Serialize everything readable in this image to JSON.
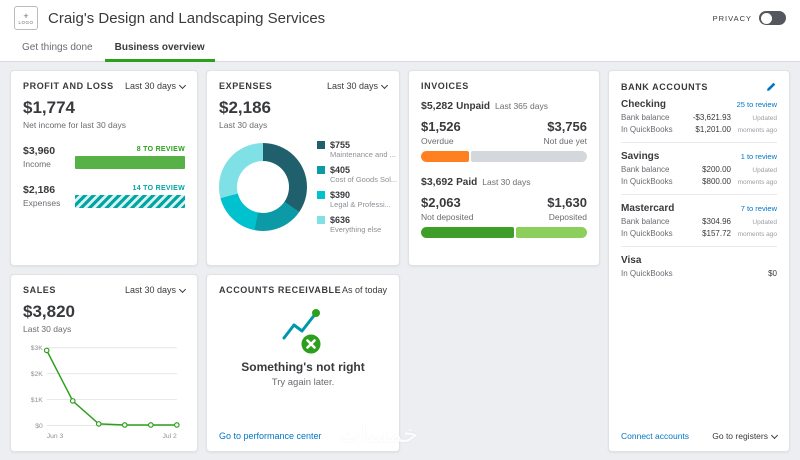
{
  "header": {
    "logo_plus": "+",
    "logo_label": "LOGO",
    "title": "Craig's Design and Landscaping Services",
    "privacy_label": "PRIVACY"
  },
  "tabs": {
    "get_things_done": "Get things done",
    "business_overview": "Business overview"
  },
  "profit_loss": {
    "title": "PROFIT AND LOSS",
    "period": "Last 30 days",
    "net_income_value": "$1,774",
    "net_income_label": "Net income for last 30 days",
    "rows": {
      "income": {
        "value": "$3,960",
        "label": "Income",
        "review": "8 TO REVIEW",
        "review_color": "#2ca01c",
        "pct": 100,
        "color": "#57b147"
      },
      "expenses": {
        "value": "$2,186",
        "label": "Expenses",
        "review": "14 TO REVIEW",
        "review_color": "#00a6a4",
        "pct": 100
      }
    }
  },
  "expenses": {
    "title": "EXPENSES",
    "period": "Last 30 days",
    "total": "$2,186",
    "total_label": "Last 30 days",
    "chart_data": {
      "type": "pie",
      "donut": true,
      "segments": [
        {
          "display": "$755",
          "value": 755,
          "label": "Maintenance and ...",
          "color": "#20606d"
        },
        {
          "display": "$405",
          "value": 405,
          "label": "Cost of Goods Sol...",
          "color": "#0c9aa6"
        },
        {
          "display": "$390",
          "value": 390,
          "label": "Legal & Professi...",
          "color": "#00c1ce"
        },
        {
          "display": "$636",
          "value": 636,
          "label": "Everything else",
          "color": "#7fe0e6"
        }
      ]
    }
  },
  "invoices": {
    "title": "INVOICES",
    "unpaid": {
      "amount": "$5,282",
      "label": "Unpaid",
      "period": "Last 365 days"
    },
    "overdue": {
      "value": "$1,526",
      "label": "Overdue",
      "pct": 29,
      "color": "#ff8021"
    },
    "not_due": {
      "value": "$3,756",
      "label": "Not due yet",
      "color": "#d4d7dc"
    },
    "paid": {
      "amount": "$3,692",
      "label": "Paid",
      "period": "Last 30 days"
    },
    "not_deposited": {
      "value": "$2,063",
      "label": "Not deposited",
      "pct": 56,
      "color": "#3f9e2a"
    },
    "deposited": {
      "value": "$1,630",
      "label": "Deposited",
      "color": "#8ccf5c"
    }
  },
  "bank_accounts": {
    "title": "BANK ACCOUNTS",
    "accounts": [
      {
        "name": "Checking",
        "review": "25 to review",
        "rows": [
          {
            "label": "Bank balance",
            "value": "-$3,621.93",
            "note": "Updated"
          },
          {
            "label": "In QuickBooks",
            "value": "$1,201.00",
            "note": "moments ago"
          }
        ]
      },
      {
        "name": "Savings",
        "review": "1 to review",
        "rows": [
          {
            "label": "Bank balance",
            "value": "$200.00",
            "note": "Updated"
          },
          {
            "label": "In QuickBooks",
            "value": "$800.00",
            "note": "moments ago"
          }
        ]
      },
      {
        "name": "Mastercard",
        "review": "7 to review",
        "rows": [
          {
            "label": "Bank balance",
            "value": "$304.96",
            "note": "Updated"
          },
          {
            "label": "In QuickBooks",
            "value": "$157.72",
            "note": "moments ago"
          }
        ]
      },
      {
        "name": "Visa",
        "review": "",
        "rows": [
          {
            "label": "In QuickBooks",
            "value": "$0",
            "note": ""
          }
        ]
      }
    ],
    "connect_label": "Connect accounts",
    "registers_label": "Go to registers"
  },
  "sales": {
    "title": "SALES",
    "period": "Last 30 days",
    "total": "$3,820",
    "total_label": "Last 30 days",
    "chart_data": {
      "type": "line",
      "x_labels": [
        "Jun 3",
        "Jul 2"
      ],
      "values": [
        2900,
        950,
        60,
        20,
        20,
        20
      ],
      "ylim": [
        0,
        3000
      ],
      "yticks": [
        "$0",
        "$1K",
        "$2K",
        "$3K"
      ],
      "line_color": "#2ca01c"
    }
  },
  "accounts_receivable": {
    "title": "ACCOUNTS RECEIVABLE",
    "period": "As of today",
    "error_title": "Something's not right",
    "error_message": "Try again later.",
    "link_label": "Go to performance center"
  },
  "watermark": {
    "text": "خمسات"
  }
}
